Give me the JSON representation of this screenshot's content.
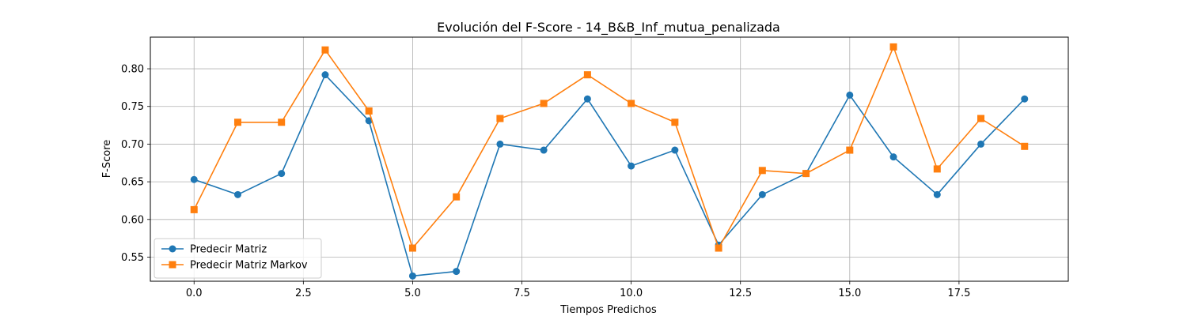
{
  "chart_data": {
    "type": "line",
    "title": "Evolución del F-Score - 14_B&B_Inf_mutua_penalizada",
    "xlabel": "Tiempos Predichos",
    "ylabel": "F-Score",
    "xlim": [
      -1,
      20
    ],
    "ylim": [
      0.518,
      0.842
    ],
    "xticks": [
      0.0,
      2.5,
      5.0,
      7.5,
      10.0,
      12.5,
      15.0,
      17.5
    ],
    "xtick_labels": [
      "0.0",
      "2.5",
      "5.0",
      "7.5",
      "10.0",
      "12.5",
      "15.0",
      "17.5"
    ],
    "yticks": [
      0.55,
      0.6,
      0.65,
      0.7,
      0.75,
      0.8
    ],
    "ytick_labels": [
      "0.55",
      "0.60",
      "0.65",
      "0.70",
      "0.75",
      "0.80"
    ],
    "grid": true,
    "legend_position": "lower-left",
    "x": [
      0,
      1,
      2,
      3,
      4,
      5,
      6,
      7,
      8,
      9,
      10,
      11,
      12,
      13,
      14,
      15,
      16,
      17,
      18,
      19
    ],
    "series": [
      {
        "name": "Predecir Matriz",
        "color": "#1f77b4",
        "marker": "circle",
        "values": [
          0.653,
          0.633,
          0.661,
          0.792,
          0.731,
          0.525,
          0.531,
          0.7,
          0.692,
          0.76,
          0.671,
          0.692,
          0.566,
          0.633,
          0.661,
          0.765,
          0.683,
          0.633,
          0.7,
          0.76
        ]
      },
      {
        "name": "Predecir Matriz Markov",
        "color": "#ff7f0e",
        "marker": "square",
        "values": [
          0.613,
          0.729,
          0.729,
          0.825,
          0.744,
          0.562,
          0.63,
          0.734,
          0.754,
          0.792,
          0.754,
          0.729,
          0.562,
          0.665,
          0.661,
          0.692,
          0.829,
          0.667,
          0.734,
          0.697
        ]
      }
    ]
  }
}
